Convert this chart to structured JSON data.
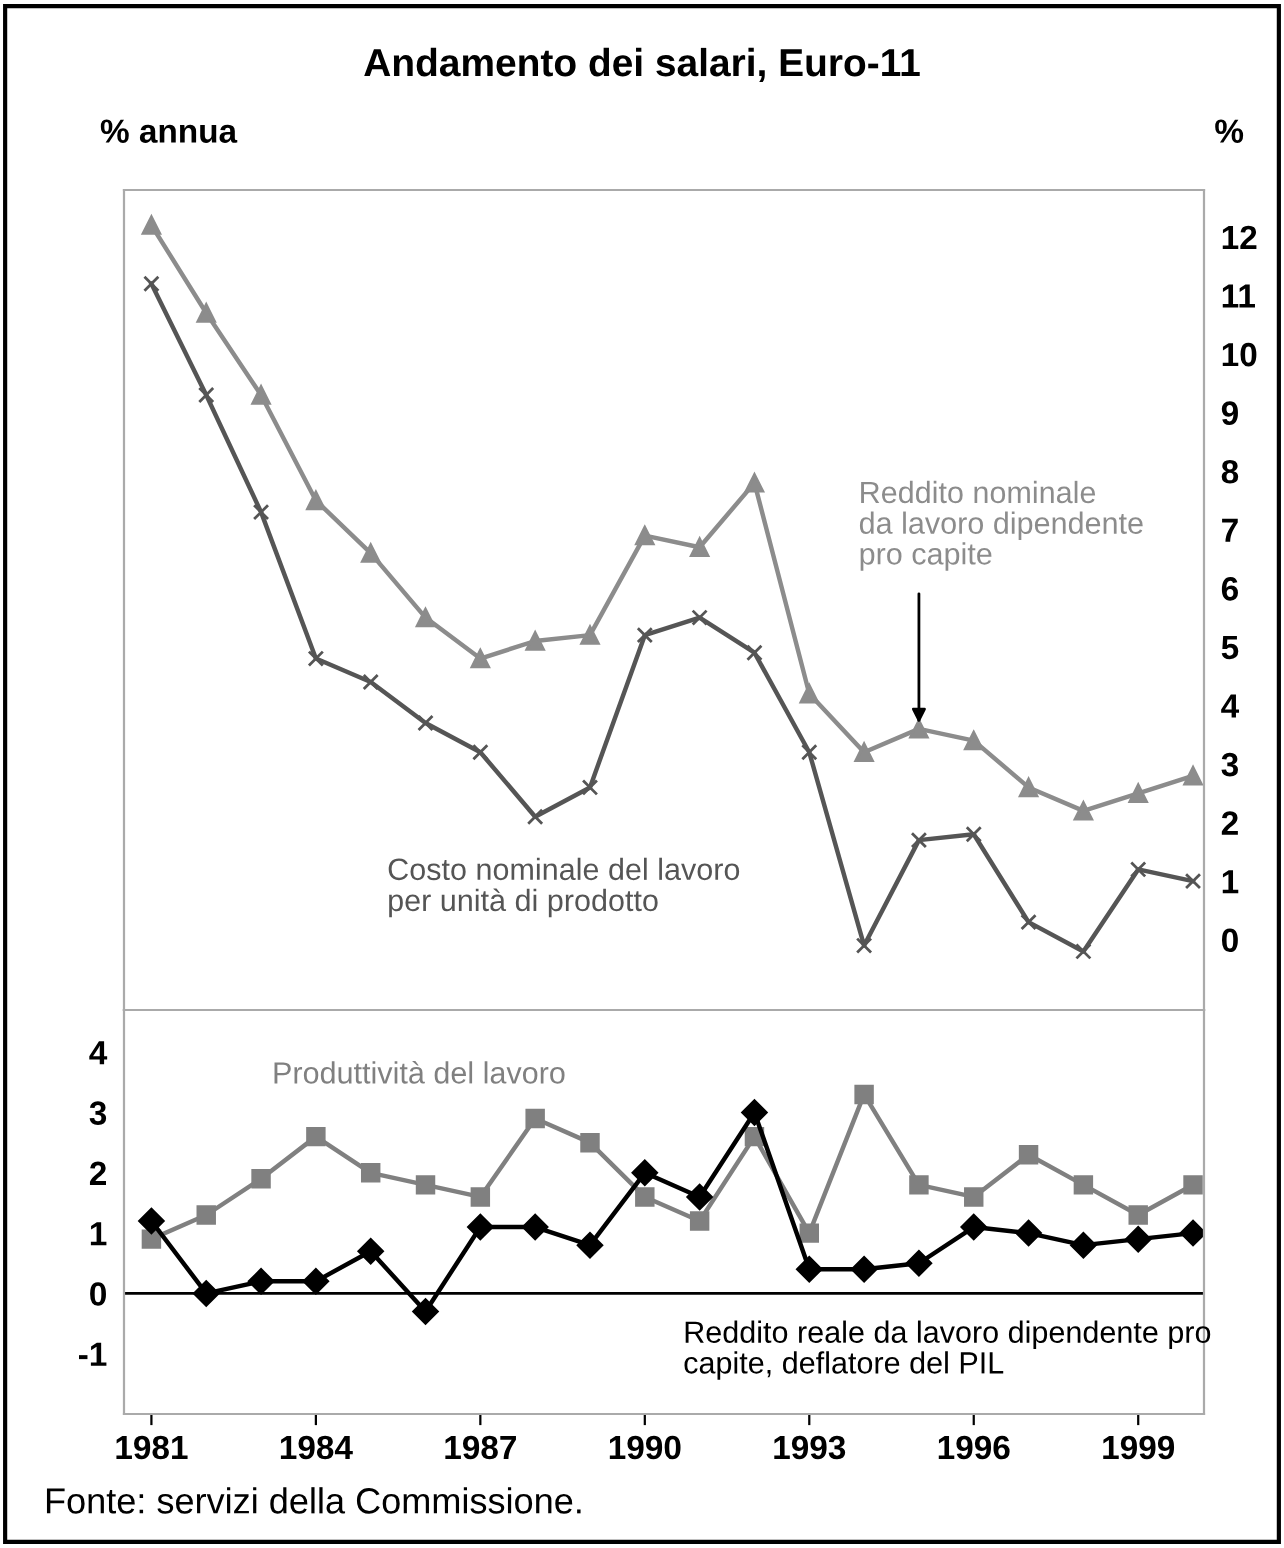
{
  "chart_data": [
    {
      "type": "line",
      "title": "Andamento dei salari, Euro-11",
      "ylabel": "%",
      "x": [
        1981,
        1982,
        1983,
        1984,
        1985,
        1986,
        1987,
        1988,
        1989,
        1990,
        1991,
        1992,
        1993,
        1994,
        1995,
        1996,
        1997,
        1998,
        1999,
        2000
      ],
      "series": [
        {
          "name": "Reddito nominale da lavoro dipendente pro capite",
          "color": "#8c8c8c",
          "marker": "triangle",
          "values": [
            12.2,
            10.7,
            9.3,
            7.5,
            6.6,
            5.5,
            4.8,
            5.1,
            5.2,
            6.9,
            6.7,
            7.8,
            4.2,
            3.2,
            3.6,
            3.4,
            2.6,
            2.2,
            2.5,
            2.8
          ]
        },
        {
          "name": "Costo nominale del lavoro per unità di prodotto",
          "color": "#555555",
          "marker": "cross",
          "values": [
            11.2,
            9.3,
            7.3,
            4.8,
            4.4,
            3.7,
            3.2,
            2.1,
            2.6,
            5.2,
            5.5,
            4.9,
            3.2,
            -0.1,
            1.7,
            1.8,
            0.3,
            -0.2,
            1.2,
            1.0
          ]
        }
      ],
      "xlim": [
        1980.5,
        2000.2
      ],
      "ylim": [
        -1.2,
        12.8
      ],
      "yticks": [
        0,
        1,
        2,
        3,
        4,
        5,
        6,
        7,
        8,
        9,
        10,
        11,
        12
      ],
      "tick_labels": "y",
      "grid": false,
      "legend": false,
      "annotations": [
        "% annua"
      ]
    },
    {
      "type": "line",
      "x": [
        1981,
        1982,
        1983,
        1984,
        1985,
        1986,
        1987,
        1988,
        1989,
        1990,
        1991,
        1992,
        1993,
        1994,
        1995,
        1996,
        1997,
        1998,
        1999,
        2000
      ],
      "series": [
        {
          "name": "Produttività del lavoro",
          "color": "#808080",
          "marker": "square",
          "values": [
            0.9,
            1.3,
            1.9,
            2.6,
            2.0,
            1.8,
            1.6,
            2.9,
            2.5,
            1.6,
            1.2,
            2.6,
            1.0,
            3.3,
            1.8,
            1.6,
            2.3,
            1.8,
            1.3,
            1.8
          ]
        },
        {
          "name": "Reddito reale da lavoro dipendente pro capite, deflatore del PIL",
          "color": "#000000",
          "marker": "diamond",
          "values": [
            1.2,
            0.0,
            0.2,
            0.2,
            0.7,
            -0.3,
            1.1,
            1.1,
            0.8,
            2.0,
            1.6,
            3.0,
            0.4,
            0.4,
            0.5,
            1.1,
            1.0,
            0.8,
            0.9,
            1.0
          ]
        }
      ],
      "ref_lines": [
        {
          "axis": "y",
          "value": 0,
          "color": "#000000"
        }
      ],
      "xlim": [
        1980.5,
        2000.2
      ],
      "ylim": [
        -2.0,
        4.7
      ],
      "xticks": [
        1981,
        1984,
        1987,
        1990,
        1993,
        1996,
        1999
      ],
      "yticks": [
        -1,
        0,
        1,
        2,
        3,
        4
      ],
      "grid": false,
      "legend": false,
      "annotations": [
        "Fonte: servizi della Commissione."
      ]
    }
  ]
}
